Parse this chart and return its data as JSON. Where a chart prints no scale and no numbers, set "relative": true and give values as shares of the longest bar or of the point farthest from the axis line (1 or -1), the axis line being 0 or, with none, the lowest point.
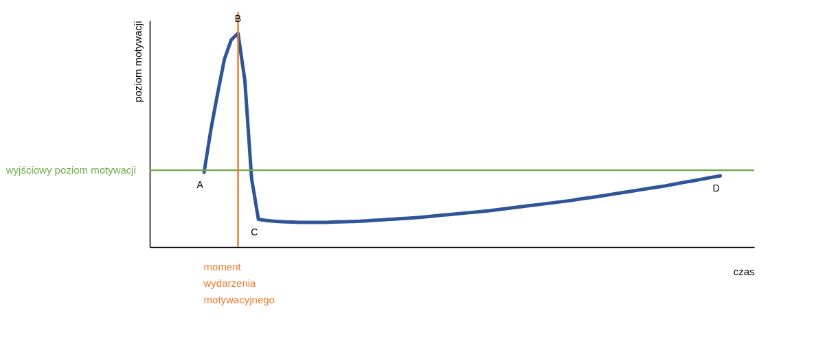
{
  "chart_data": {
    "type": "line",
    "relative": true,
    "xlabel": "czas",
    "ylabel": "poziom motywacji",
    "line_style": "solid",
    "categories": [
      null,
      null,
      null,
      null,
      null,
      null,
      null,
      null,
      null,
      null,
      null,
      null,
      null,
      null,
      null,
      null,
      null,
      null,
      null,
      null,
      null,
      null,
      null,
      null,
      null,
      null,
      null,
      null,
      null,
      null,
      null,
      null,
      null,
      null,
      null,
      null,
      null,
      null,
      null,
      null,
      null,
      null,
      null,
      null,
      null,
      null,
      null,
      null,
      null,
      null,
      null,
      null,
      null,
      null,
      null,
      null,
      null,
      null,
      null,
      null,
      null,
      null,
      null,
      null,
      null,
      null,
      null,
      null,
      null,
      null,
      null,
      null,
      null,
      null,
      null,
      null,
      null,
      null,
      null,
      null,
      null,
      null,
      null,
      null,
      null,
      null,
      null,
      null,
      null,
      null
    ],
    "series": [
      {
        "color": "#2f5597",
        "values": [
          null,
          null,
          null,
          null,
          null,
          null,
          null,
          null,
          0.35,
          0.55,
          0.72,
          0.88,
          0.97,
          1.0,
          0.78,
          0.32,
          0.13,
          0.125,
          0.122,
          0.12,
          0.118,
          0.117,
          0.116,
          0.116,
          0.116,
          0.116,
          0.116,
          0.117,
          0.118,
          0.119,
          0.12,
          0.121,
          0.123,
          0.125,
          0.127,
          0.129,
          0.131,
          0.133,
          0.135,
          0.137,
          0.14,
          0.143,
          0.146,
          0.149,
          0.152,
          0.155,
          0.158,
          0.161,
          0.164,
          0.167,
          0.17,
          0.174,
          0.178,
          0.182,
          0.186,
          0.19,
          0.194,
          0.198,
          0.202,
          0.206,
          0.21,
          0.214,
          0.218,
          0.223,
          0.228,
          0.232,
          0.237,
          0.242,
          0.247,
          0.252,
          0.257,
          0.262,
          0.267,
          0.272,
          0.277,
          0.282,
          0.287,
          0.293,
          0.299,
          0.305,
          0.31,
          0.316,
          0.322,
          0.328,
          0.333,
          null,
          null,
          null,
          null,
          null
        ]
      }
    ],
    "ref_lines": [
      {
        "axis": "y",
        "value": 0.36,
        "label": "wyjściowy poziom motywacji",
        "color": "#70ad47"
      },
      {
        "axis": "x",
        "label": "moment wydarzenia motywacyjnego",
        "color": "#ed7d31"
      }
    ],
    "annotations": [
      {
        "text": "A",
        "y": 0.35
      },
      {
        "text": "B",
        "y": 1.0
      },
      {
        "text": "C",
        "y": 0.13
      },
      {
        "text": "D",
        "y": 0.333
      }
    ]
  }
}
